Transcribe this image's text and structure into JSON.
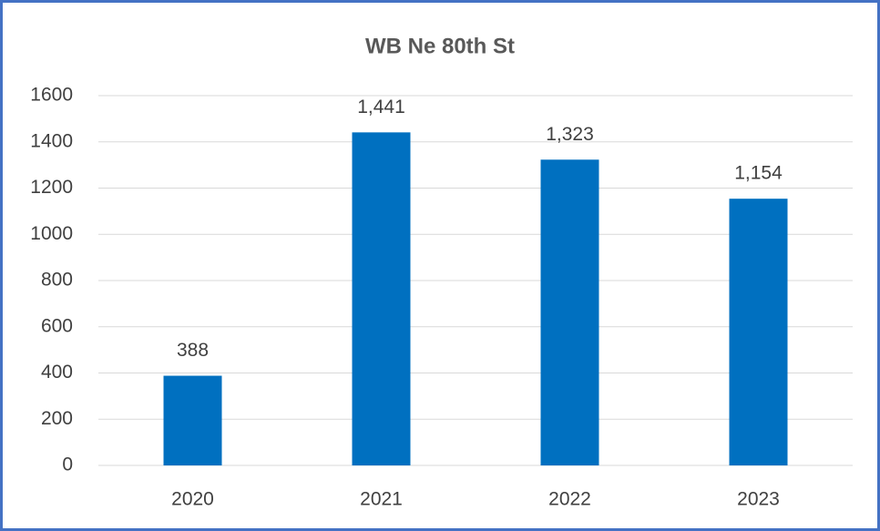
{
  "chart_data": {
    "type": "bar",
    "title": "WB Ne 80th St",
    "categories": [
      "2020",
      "2021",
      "2022",
      "2023"
    ],
    "values": [
      388,
      1441,
      1323,
      1154
    ],
    "value_labels": [
      "388",
      "1,441",
      "1,323",
      "1,154"
    ],
    "color": "#0070c0",
    "ylim": [
      0,
      1600
    ],
    "yticks": [
      0,
      200,
      400,
      600,
      800,
      1000,
      1200,
      1400,
      1600
    ],
    "grid": true
  }
}
